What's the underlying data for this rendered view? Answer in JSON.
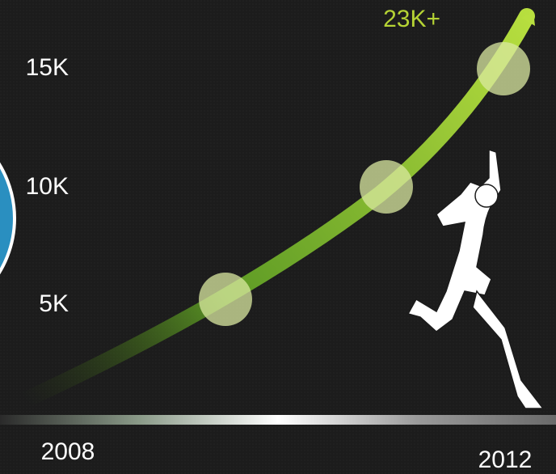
{
  "milestones": [
    "15K",
    "10K",
    "5K"
  ],
  "callout": "23K+",
  "years": [
    "2008",
    "2012"
  ]
}
